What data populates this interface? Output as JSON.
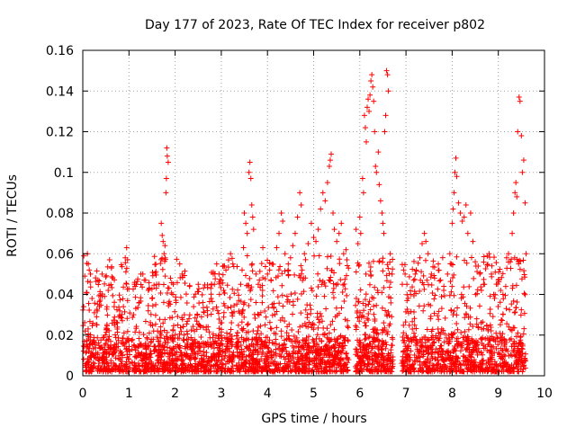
{
  "chart_data": {
    "type": "scatter",
    "title": "Day 177 of 2023, Rate Of TEC Index for receiver p802",
    "xlabel": "GPS time / hours",
    "ylabel": "ROTI / TECUs",
    "xlim": [
      0,
      10
    ],
    "ylim": [
      0,
      0.16
    ],
    "grid": true,
    "marker": "+",
    "series_color": "#ff0000",
    "x_ticks": [
      0,
      1,
      2,
      3,
      4,
      5,
      6,
      7,
      8,
      9,
      10
    ],
    "x_tick_labels": [
      "0",
      "1",
      "2",
      "3",
      "4",
      "5",
      "6",
      "7",
      "8",
      "9",
      "10"
    ],
    "y_ticks": [
      0,
      0.02,
      0.04,
      0.06,
      0.08,
      0.1,
      0.12,
      0.14,
      0.16
    ],
    "y_tick_labels": [
      "0",
      "0.02",
      "0.04",
      "0.06",
      "0.08",
      "0.1",
      "0.12",
      "0.14",
      "0.16"
    ],
    "data_extent": {
      "x_min": 0.0,
      "x_max": 9.6
    },
    "gaps": [
      [
        1.02,
        1.06
      ],
      [
        3.28,
        3.32
      ],
      [
        5.76,
        5.9
      ],
      [
        6.72,
        6.9
      ]
    ],
    "envelope": [
      {
        "x": 0.1,
        "y": 0.06
      },
      {
        "x": 0.4,
        "y": 0.05
      },
      {
        "x": 0.6,
        "y": 0.057
      },
      {
        "x": 0.95,
        "y": 0.063
      },
      {
        "x": 1.3,
        "y": 0.05
      },
      {
        "x": 1.7,
        "y": 0.075
      },
      {
        "x": 1.82,
        "y": 0.112
      },
      {
        "x": 2.1,
        "y": 0.055
      },
      {
        "x": 2.5,
        "y": 0.045
      },
      {
        "x": 2.9,
        "y": 0.055
      },
      {
        "x": 3.2,
        "y": 0.06
      },
      {
        "x": 3.5,
        "y": 0.08
      },
      {
        "x": 3.62,
        "y": 0.105
      },
      {
        "x": 3.9,
        "y": 0.063
      },
      {
        "x": 4.3,
        "y": 0.08
      },
      {
        "x": 4.7,
        "y": 0.09
      },
      {
        "x": 4.95,
        "y": 0.075
      },
      {
        "x": 5.2,
        "y": 0.09
      },
      {
        "x": 5.38,
        "y": 0.109
      },
      {
        "x": 5.6,
        "y": 0.075
      },
      {
        "x": 6.1,
        "y": 0.128
      },
      {
        "x": 6.28,
        "y": 0.148
      },
      {
        "x": 6.42,
        "y": 0.11
      },
      {
        "x": 6.58,
        "y": 0.15
      },
      {
        "x": 7.0,
        "y": 0.05
      },
      {
        "x": 7.4,
        "y": 0.07
      },
      {
        "x": 7.7,
        "y": 0.055
      },
      {
        "x": 8.08,
        "y": 0.107
      },
      {
        "x": 8.4,
        "y": 0.08
      },
      {
        "x": 8.8,
        "y": 0.06
      },
      {
        "x": 9.2,
        "y": 0.06
      },
      {
        "x": 9.45,
        "y": 0.137
      },
      {
        "x": 9.55,
        "y": 0.118
      }
    ],
    "points": [
      [
        0.02,
        0.034
      ],
      [
        0.05,
        0.022
      ],
      [
        0.08,
        0.041
      ],
      [
        0.1,
        0.06
      ],
      [
        0.12,
        0.055
      ],
      [
        0.14,
        0.052
      ],
      [
        0.16,
        0.046
      ],
      [
        0.2,
        0.038
      ],
      [
        0.25,
        0.031
      ],
      [
        0.3,
        0.029
      ],
      [
        0.36,
        0.034
      ],
      [
        0.42,
        0.05
      ],
      [
        0.47,
        0.039
      ],
      [
        0.55,
        0.042
      ],
      [
        0.58,
        0.057
      ],
      [
        0.62,
        0.053
      ],
      [
        0.68,
        0.034
      ],
      [
        0.75,
        0.026
      ],
      [
        0.82,
        0.029
      ],
      [
        0.88,
        0.034
      ],
      [
        0.92,
        0.058
      ],
      [
        0.95,
        0.063
      ],
      [
        0.97,
        0.057
      ],
      [
        1.1,
        0.03
      ],
      [
        1.16,
        0.045
      ],
      [
        1.22,
        0.036
      ],
      [
        1.3,
        0.05
      ],
      [
        1.36,
        0.047
      ],
      [
        1.42,
        0.042
      ],
      [
        1.5,
        0.038
      ],
      [
        1.58,
        0.035
      ],
      [
        1.65,
        0.045
      ],
      [
        1.7,
        0.075
      ],
      [
        1.72,
        0.069
      ],
      [
        1.74,
        0.066
      ],
      [
        1.76,
        0.06
      ],
      [
        1.78,
        0.064
      ],
      [
        1.8,
        0.09
      ],
      [
        1.81,
        0.097
      ],
      [
        1.82,
        0.112
      ],
      [
        1.83,
        0.108
      ],
      [
        1.85,
        0.105
      ],
      [
        1.9,
        0.048
      ],
      [
        1.95,
        0.04
      ],
      [
        2.02,
        0.036
      ],
      [
        2.1,
        0.055
      ],
      [
        2.15,
        0.05
      ],
      [
        2.2,
        0.03
      ],
      [
        2.3,
        0.028
      ],
      [
        2.4,
        0.034
      ],
      [
        2.5,
        0.045
      ],
      [
        2.6,
        0.036
      ],
      [
        2.7,
        0.032
      ],
      [
        2.78,
        0.038
      ],
      [
        2.85,
        0.045
      ],
      [
        2.9,
        0.055
      ],
      [
        2.95,
        0.05
      ],
      [
        3.0,
        0.047
      ],
      [
        3.05,
        0.042
      ],
      [
        3.1,
        0.052
      ],
      [
        3.2,
        0.06
      ],
      [
        3.25,
        0.055
      ],
      [
        3.38,
        0.037
      ],
      [
        3.42,
        0.045
      ],
      [
        3.45,
        0.052
      ],
      [
        3.48,
        0.063
      ],
      [
        3.5,
        0.08
      ],
      [
        3.53,
        0.075
      ],
      [
        3.56,
        0.07
      ],
      [
        3.6,
        0.1
      ],
      [
        3.62,
        0.105
      ],
      [
        3.64,
        0.097
      ],
      [
        3.66,
        0.084
      ],
      [
        3.68,
        0.078
      ],
      [
        3.7,
        0.072
      ],
      [
        3.75,
        0.05
      ],
      [
        3.8,
        0.045
      ],
      [
        3.9,
        0.063
      ],
      [
        4.0,
        0.05
      ],
      [
        4.1,
        0.055
      ],
      [
        4.2,
        0.063
      ],
      [
        4.25,
        0.07
      ],
      [
        4.3,
        0.08
      ],
      [
        4.33,
        0.076
      ],
      [
        4.38,
        0.06
      ],
      [
        4.45,
        0.055
      ],
      [
        4.5,
        0.058
      ],
      [
        4.55,
        0.064
      ],
      [
        4.6,
        0.07
      ],
      [
        4.65,
        0.078
      ],
      [
        4.7,
        0.09
      ],
      [
        4.73,
        0.084
      ],
      [
        4.8,
        0.06
      ],
      [
        4.88,
        0.065
      ],
      [
        4.95,
        0.075
      ],
      [
        5.0,
        0.068
      ],
      [
        5.05,
        0.066
      ],
      [
        5.1,
        0.072
      ],
      [
        5.15,
        0.082
      ],
      [
        5.2,
        0.09
      ],
      [
        5.25,
        0.086
      ],
      [
        5.3,
        0.095
      ],
      [
        5.34,
        0.103
      ],
      [
        5.36,
        0.106
      ],
      [
        5.38,
        0.109
      ],
      [
        5.42,
        0.08
      ],
      [
        5.45,
        0.072
      ],
      [
        5.5,
        0.066
      ],
      [
        5.55,
        0.07
      ],
      [
        5.6,
        0.075
      ],
      [
        5.65,
        0.06
      ],
      [
        5.7,
        0.062
      ],
      [
        5.72,
        0.057
      ],
      [
        5.92,
        0.072
      ],
      [
        5.96,
        0.065
      ],
      [
        6.0,
        0.078
      ],
      [
        6.02,
        0.07
      ],
      [
        6.06,
        0.097
      ],
      [
        6.08,
        0.09
      ],
      [
        6.1,
        0.128
      ],
      [
        6.12,
        0.122
      ],
      [
        6.14,
        0.115
      ],
      [
        6.16,
        0.132
      ],
      [
        6.18,
        0.136
      ],
      [
        6.2,
        0.13
      ],
      [
        6.22,
        0.138
      ],
      [
        6.24,
        0.145
      ],
      [
        6.26,
        0.148
      ],
      [
        6.28,
        0.142
      ],
      [
        6.3,
        0.135
      ],
      [
        6.32,
        0.12
      ],
      [
        6.34,
        0.103
      ],
      [
        6.36,
        0.1
      ],
      [
        6.4,
        0.11
      ],
      [
        6.42,
        0.094
      ],
      [
        6.45,
        0.086
      ],
      [
        6.48,
        0.08
      ],
      [
        6.5,
        0.075
      ],
      [
        6.52,
        0.07
      ],
      [
        6.54,
        0.12
      ],
      [
        6.56,
        0.128
      ],
      [
        6.58,
        0.15
      ],
      [
        6.6,
        0.148
      ],
      [
        6.62,
        0.14
      ],
      [
        6.66,
        0.06
      ],
      [
        6.7,
        0.05
      ],
      [
        6.92,
        0.045
      ],
      [
        6.98,
        0.05
      ],
      [
        7.02,
        0.045
      ],
      [
        7.1,
        0.04
      ],
      [
        7.2,
        0.05
      ],
      [
        7.3,
        0.058
      ],
      [
        7.35,
        0.065
      ],
      [
        7.4,
        0.07
      ],
      [
        7.43,
        0.066
      ],
      [
        7.48,
        0.06
      ],
      [
        7.55,
        0.05
      ],
      [
        7.62,
        0.048
      ],
      [
        7.7,
        0.055
      ],
      [
        7.75,
        0.047
      ],
      [
        7.82,
        0.044
      ],
      [
        7.9,
        0.05
      ],
      [
        7.95,
        0.06
      ],
      [
        8.0,
        0.075
      ],
      [
        8.02,
        0.082
      ],
      [
        8.04,
        0.09
      ],
      [
        8.06,
        0.1
      ],
      [
        8.08,
        0.107
      ],
      [
        8.1,
        0.098
      ],
      [
        8.14,
        0.085
      ],
      [
        8.18,
        0.08
      ],
      [
        8.22,
        0.076
      ],
      [
        8.26,
        0.078
      ],
      [
        8.3,
        0.084
      ],
      [
        8.34,
        0.07
      ],
      [
        8.4,
        0.08
      ],
      [
        8.45,
        0.066
      ],
      [
        8.5,
        0.056
      ],
      [
        8.6,
        0.05
      ],
      [
        8.7,
        0.045
      ],
      [
        8.8,
        0.06
      ],
      [
        8.85,
        0.05
      ],
      [
        8.9,
        0.04
      ],
      [
        9.0,
        0.047
      ],
      [
        9.05,
        0.042
      ],
      [
        9.1,
        0.04
      ],
      [
        9.18,
        0.058
      ],
      [
        9.22,
        0.06
      ],
      [
        9.26,
        0.056
      ],
      [
        9.3,
        0.07
      ],
      [
        9.33,
        0.08
      ],
      [
        9.36,
        0.09
      ],
      [
        9.38,
        0.095
      ],
      [
        9.4,
        0.088
      ],
      [
        9.42,
        0.12
      ],
      [
        9.45,
        0.137
      ],
      [
        9.47,
        0.135
      ],
      [
        9.5,
        0.118
      ],
      [
        9.52,
        0.1
      ],
      [
        9.55,
        0.106
      ],
      [
        9.58,
        0.085
      ],
      [
        9.6,
        0.06
      ]
    ]
  }
}
